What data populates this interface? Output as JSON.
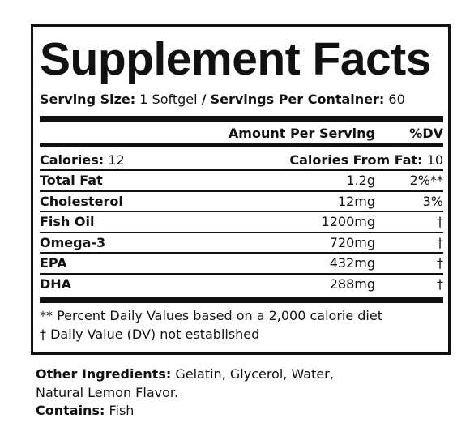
{
  "panel": {
    "title": "Supplement Facts",
    "serving": {
      "size_label": "Serving Size:",
      "size_value": "1 Softgel",
      "separator": "/",
      "per_label": "Servings Per Container:",
      "per_value": "60"
    },
    "header": {
      "amount": "Amount Per Serving",
      "dv": "%DV"
    },
    "calories": {
      "label": "Calories:",
      "value": "12",
      "fat_label": "Calories From Fat:",
      "fat_value": "10"
    },
    "rows": [
      {
        "name": "Total Fat",
        "amount": "1.2g",
        "dv": "2%**"
      },
      {
        "name": "Cholesterol",
        "amount": "12mg",
        "dv": "3%"
      },
      {
        "name": "Fish Oil",
        "amount": "1200mg",
        "dv": "†"
      },
      {
        "name": "Omega-3",
        "amount": "720mg",
        "dv": "†"
      },
      {
        "name": "EPA",
        "amount": "432mg",
        "dv": "†"
      },
      {
        "name": "DHA",
        "amount": "288mg",
        "dv": "†"
      }
    ],
    "footnotes": [
      "** Percent Daily Values based on a 2,000 calorie diet",
      "† Daily Value (DV) not established"
    ]
  },
  "ingredients": {
    "label": "Other Ingredients:",
    "text_line1": "Gelatin, Glycerol, Water,",
    "text_line2": "Natural Lemon Flavor."
  },
  "contains": {
    "label": "Contains:",
    "text": "Fish"
  }
}
